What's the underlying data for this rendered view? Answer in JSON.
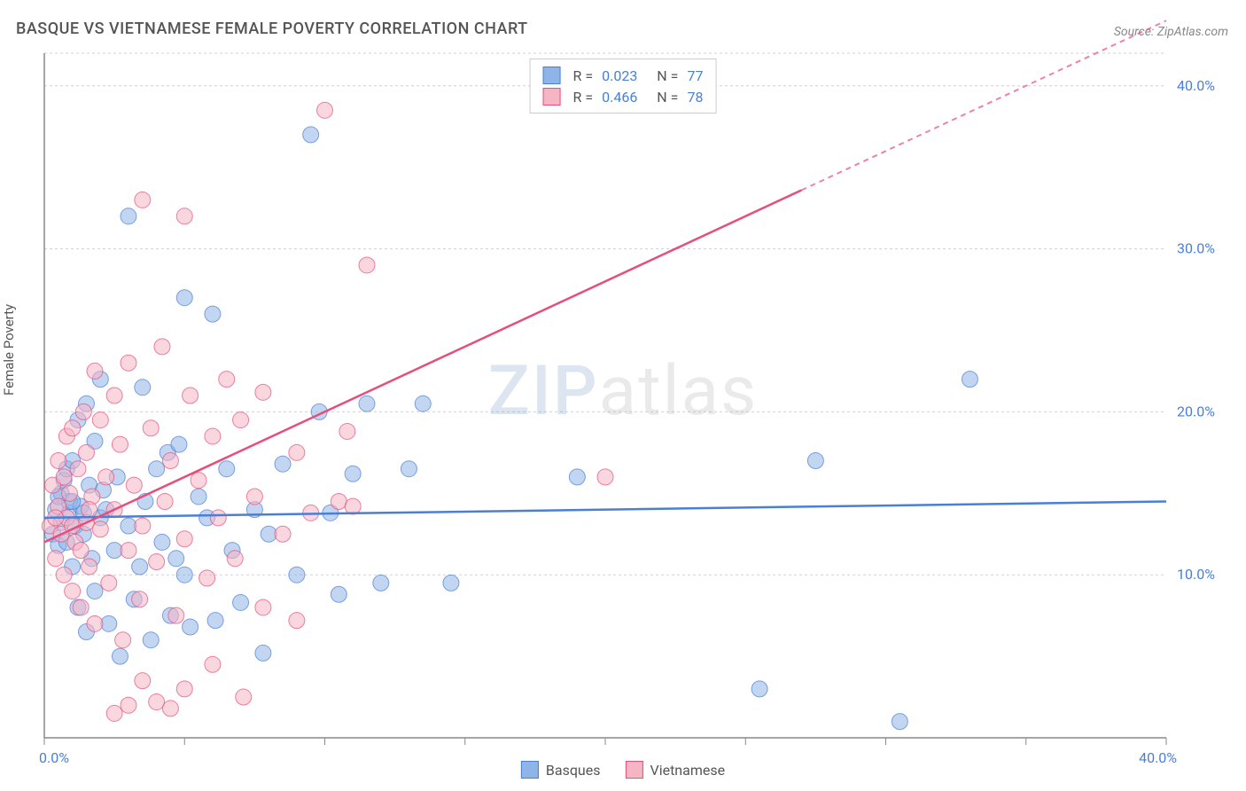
{
  "title": "BASQUE VS VIETNAMESE FEMALE POVERTY CORRELATION CHART",
  "source": "Source: ZipAtlas.com",
  "watermark": {
    "part1": "ZIP",
    "part2": "atlas"
  },
  "ylabel": "Female Poverty",
  "chart": {
    "type": "scatter",
    "background_color": "#ffffff",
    "grid_color": "#d0d0d0",
    "grid_dash": "3,3",
    "axis_color": "#888888",
    "tick_label_color": "#4a7fd6",
    "xlim": [
      0,
      40
    ],
    "ylim": [
      0,
      42
    ],
    "xticks": [
      0,
      10,
      20,
      30,
      40
    ],
    "xtick_labels": [
      "0.0%",
      "",
      "",
      "",
      "40.0%"
    ],
    "yticks": [
      10,
      20,
      30,
      40
    ],
    "ytick_labels": [
      "10.0%",
      "20.0%",
      "30.0%",
      "40.0%"
    ],
    "marker_radius": 9,
    "marker_opacity": 0.55,
    "series": [
      {
        "name": "Basques",
        "fill_color": "#8fb4e8",
        "stroke_color": "#4a7fd6",
        "trend": {
          "y_at_x0": 13.5,
          "y_at_x40": 14.5,
          "dash_after_x": 40
        },
        "legend": {
          "r": "0.023",
          "n": "77"
        },
        "points": [
          [
            0.3,
            12.5
          ],
          [
            0.4,
            14.0
          ],
          [
            0.5,
            11.8
          ],
          [
            0.6,
            13.2
          ],
          [
            0.6,
            15.0
          ],
          [
            0.7,
            15.8
          ],
          [
            0.8,
            12.0
          ],
          [
            0.8,
            16.5
          ],
          [
            0.9,
            13.8
          ],
          [
            0.9,
            14.5
          ],
          [
            1.0,
            10.5
          ],
          [
            1.0,
            17.0
          ],
          [
            1.1,
            13.0
          ],
          [
            1.2,
            19.5
          ],
          [
            1.2,
            8.0
          ],
          [
            1.3,
            14.2
          ],
          [
            1.4,
            12.5
          ],
          [
            1.5,
            20.5
          ],
          [
            1.5,
            6.5
          ],
          [
            1.6,
            15.5
          ],
          [
            1.7,
            11.0
          ],
          [
            1.8,
            18.2
          ],
          [
            1.8,
            9.0
          ],
          [
            2.0,
            22.0
          ],
          [
            2.0,
            13.5
          ],
          [
            2.2,
            14.0
          ],
          [
            2.3,
            7.0
          ],
          [
            2.5,
            11.5
          ],
          [
            2.6,
            16.0
          ],
          [
            2.7,
            5.0
          ],
          [
            3.0,
            32.0
          ],
          [
            3.0,
            13.0
          ],
          [
            3.2,
            8.5
          ],
          [
            3.4,
            10.5
          ],
          [
            3.5,
            21.5
          ],
          [
            3.6,
            14.5
          ],
          [
            3.8,
            6.0
          ],
          [
            4.0,
            16.5
          ],
          [
            4.2,
            12.0
          ],
          [
            4.4,
            17.5
          ],
          [
            4.5,
            7.5
          ],
          [
            4.7,
            11.0
          ],
          [
            4.8,
            18.0
          ],
          [
            5.0,
            27.0
          ],
          [
            5.0,
            10.0
          ],
          [
            5.2,
            6.8
          ],
          [
            5.5,
            14.8
          ],
          [
            5.8,
            13.5
          ],
          [
            6.0,
            26.0
          ],
          [
            6.1,
            7.2
          ],
          [
            6.5,
            16.5
          ],
          [
            6.7,
            11.5
          ],
          [
            7.0,
            8.3
          ],
          [
            7.5,
            14.0
          ],
          [
            7.8,
            5.2
          ],
          [
            8.0,
            12.5
          ],
          [
            8.5,
            16.8
          ],
          [
            9.0,
            10.0
          ],
          [
            9.5,
            37.0
          ],
          [
            9.8,
            20.0
          ],
          [
            10.2,
            13.8
          ],
          [
            10.5,
            8.8
          ],
          [
            11.0,
            16.2
          ],
          [
            11.5,
            20.5
          ],
          [
            12.0,
            9.5
          ],
          [
            13.0,
            16.5
          ],
          [
            13.5,
            20.5
          ],
          [
            14.5,
            9.5
          ],
          [
            19.0,
            16.0
          ],
          [
            25.5,
            3.0
          ],
          [
            27.5,
            17.0
          ],
          [
            30.5,
            1.0
          ],
          [
            33.0,
            22.0
          ],
          [
            1.0,
            14.5
          ],
          [
            1.4,
            13.8
          ],
          [
            2.1,
            15.2
          ],
          [
            0.5,
            14.8
          ]
        ]
      },
      {
        "name": "Vietnamese",
        "fill_color": "#f5b5c4",
        "stroke_color": "#e54f7a",
        "trend": {
          "y_at_x0": 12.0,
          "y_at_x40": 44.0,
          "dash_after_x": 27
        },
        "legend": {
          "r": "0.466",
          "n": "78"
        },
        "points": [
          [
            0.2,
            13.0
          ],
          [
            0.3,
            15.5
          ],
          [
            0.4,
            11.0
          ],
          [
            0.5,
            14.2
          ],
          [
            0.5,
            17.0
          ],
          [
            0.6,
            12.5
          ],
          [
            0.7,
            16.0
          ],
          [
            0.7,
            10.0
          ],
          [
            0.8,
            18.5
          ],
          [
            0.8,
            13.5
          ],
          [
            0.9,
            15.0
          ],
          [
            1.0,
            9.0
          ],
          [
            1.0,
            19.0
          ],
          [
            1.1,
            12.0
          ],
          [
            1.2,
            16.5
          ],
          [
            1.3,
            8.0
          ],
          [
            1.4,
            20.0
          ],
          [
            1.5,
            13.2
          ],
          [
            1.5,
            17.5
          ],
          [
            1.6,
            10.5
          ],
          [
            1.7,
            14.8
          ],
          [
            1.8,
            22.5
          ],
          [
            1.8,
            7.0
          ],
          [
            2.0,
            19.5
          ],
          [
            2.0,
            12.8
          ],
          [
            2.2,
            16.0
          ],
          [
            2.3,
            9.5
          ],
          [
            2.5,
            21.0
          ],
          [
            2.5,
            14.0
          ],
          [
            2.7,
            18.0
          ],
          [
            2.8,
            6.0
          ],
          [
            3.0,
            23.0
          ],
          [
            3.0,
            11.5
          ],
          [
            3.2,
            15.5
          ],
          [
            3.4,
            8.5
          ],
          [
            3.5,
            33.0
          ],
          [
            3.5,
            13.0
          ],
          [
            3.8,
            19.0
          ],
          [
            4.0,
            10.8
          ],
          [
            4.2,
            24.0
          ],
          [
            4.3,
            14.5
          ],
          [
            4.5,
            17.0
          ],
          [
            4.7,
            7.5
          ],
          [
            5.0,
            32.0
          ],
          [
            5.0,
            12.2
          ],
          [
            5.2,
            21.0
          ],
          [
            5.5,
            15.8
          ],
          [
            5.8,
            9.8
          ],
          [
            6.0,
            18.5
          ],
          [
            6.2,
            13.5
          ],
          [
            6.5,
            22.0
          ],
          [
            6.8,
            11.0
          ],
          [
            7.0,
            19.5
          ],
          [
            7.1,
            2.5
          ],
          [
            7.5,
            14.8
          ],
          [
            7.8,
            8.0
          ],
          [
            7.8,
            21.2
          ],
          [
            8.5,
            12.5
          ],
          [
            9.0,
            17.5
          ],
          [
            9.0,
            7.2
          ],
          [
            9.5,
            13.8
          ],
          [
            10.0,
            38.5
          ],
          [
            10.5,
            14.5
          ],
          [
            10.8,
            18.8
          ],
          [
            11.5,
            29.0
          ],
          [
            11.0,
            14.2
          ],
          [
            2.5,
            1.5
          ],
          [
            3.0,
            2.0
          ],
          [
            3.5,
            3.5
          ],
          [
            4.0,
            2.2
          ],
          [
            5.0,
            3.0
          ],
          [
            6.0,
            4.5
          ],
          [
            4.5,
            1.8
          ],
          [
            20.0,
            16.0
          ],
          [
            1.0,
            13.0
          ],
          [
            1.3,
            11.5
          ],
          [
            1.6,
            14.0
          ],
          [
            0.4,
            13.5
          ]
        ]
      }
    ],
    "x_legend": [
      {
        "label": "Basques",
        "fill": "#8fb4e8",
        "stroke": "#4a7fd6"
      },
      {
        "label": "Vietnamese",
        "fill": "#f5b5c4",
        "stroke": "#e54f7a"
      }
    ]
  }
}
